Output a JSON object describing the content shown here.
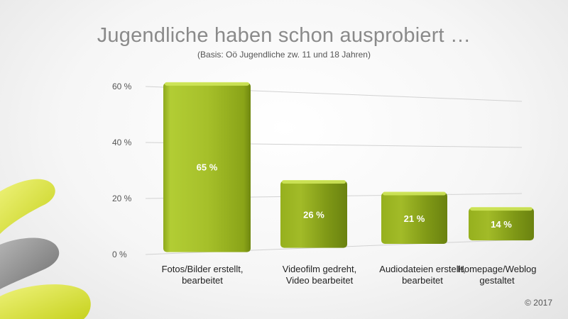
{
  "title": "Jugendliche haben schon ausprobiert …",
  "subtitle": "(Basis: Oö Jugendliche zw. 11 und 18 Jahren)",
  "copyright": "© 2017",
  "colors": {
    "bar": "#a8c42a",
    "barDark": "#7f9a14",
    "barTop": "#c8e04a",
    "deco_yellow": "#d6e23c",
    "deco_gray": "#8d8d8d"
  },
  "chart_data": {
    "type": "bar",
    "categories": [
      [
        "Fotos/Bilder erstellt,",
        "bearbeitet"
      ],
      [
        "Videofilm gedreht,",
        "Video bearbeitet"
      ],
      [
        "Audiodateien erstellt,",
        "bearbeitet"
      ],
      [
        "Homepage/Weblog",
        "gestaltet"
      ]
    ],
    "values": [
      65,
      26,
      21,
      14
    ],
    "value_labels": [
      "65  %",
      "26  %",
      "21  %",
      "14  %"
    ],
    "ylim": [
      0,
      60
    ],
    "yticks": [
      0,
      20,
      40,
      60
    ],
    "ytick_labels": [
      "0  %",
      "20  %",
      "40  %",
      "60  %"
    ],
    "grid": true
  }
}
